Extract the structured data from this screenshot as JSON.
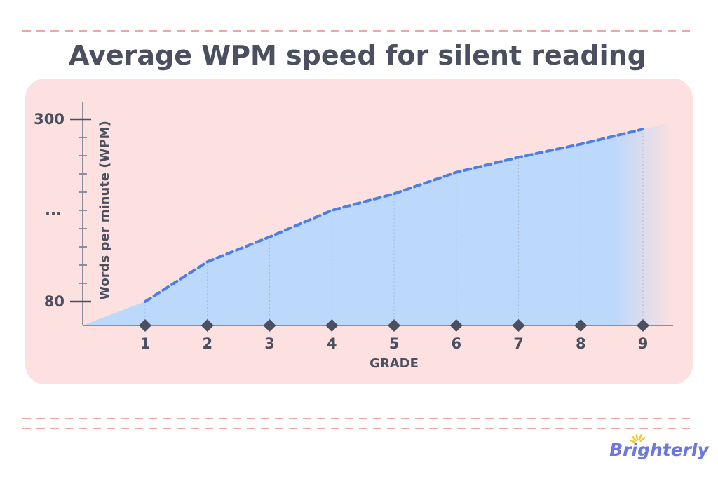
{
  "colors": {
    "panel": "#fde0e0",
    "area_fill": "#bcd8fb",
    "line": "#4a7fe6",
    "axis": "#8a8f99",
    "text": "#4a5060",
    "marker": "#4a5060",
    "dashes": "#f2a5a5",
    "logo": "#6a78e0",
    "logo_sun": "#f5c533"
  },
  "logo": {
    "text": "Brighterly"
  },
  "chart_data": {
    "type": "area",
    "title": "Average  WPM speed for silent reading",
    "xlabel": "GRADE",
    "ylabel": "Words per minute (WPM)",
    "x": [
      1,
      2,
      3,
      4,
      5,
      6,
      7,
      8,
      9
    ],
    "x_tick_labels": [
      "1",
      "2",
      "3",
      "4",
      "5",
      "6",
      "7",
      "8",
      "9"
    ],
    "y_tick_labels": [
      {
        "label": "300",
        "value": 300
      },
      {
        "label": "...",
        "value": 190
      },
      {
        "label": "80",
        "value": 80
      }
    ],
    "ylim": [
      52,
      326
    ],
    "series": [
      {
        "values": [
          80,
          128,
          158,
          190,
          210,
          236,
          254,
          270,
          288
        ],
        "style": "dashed"
      }
    ],
    "grid": false,
    "legend": "none"
  }
}
